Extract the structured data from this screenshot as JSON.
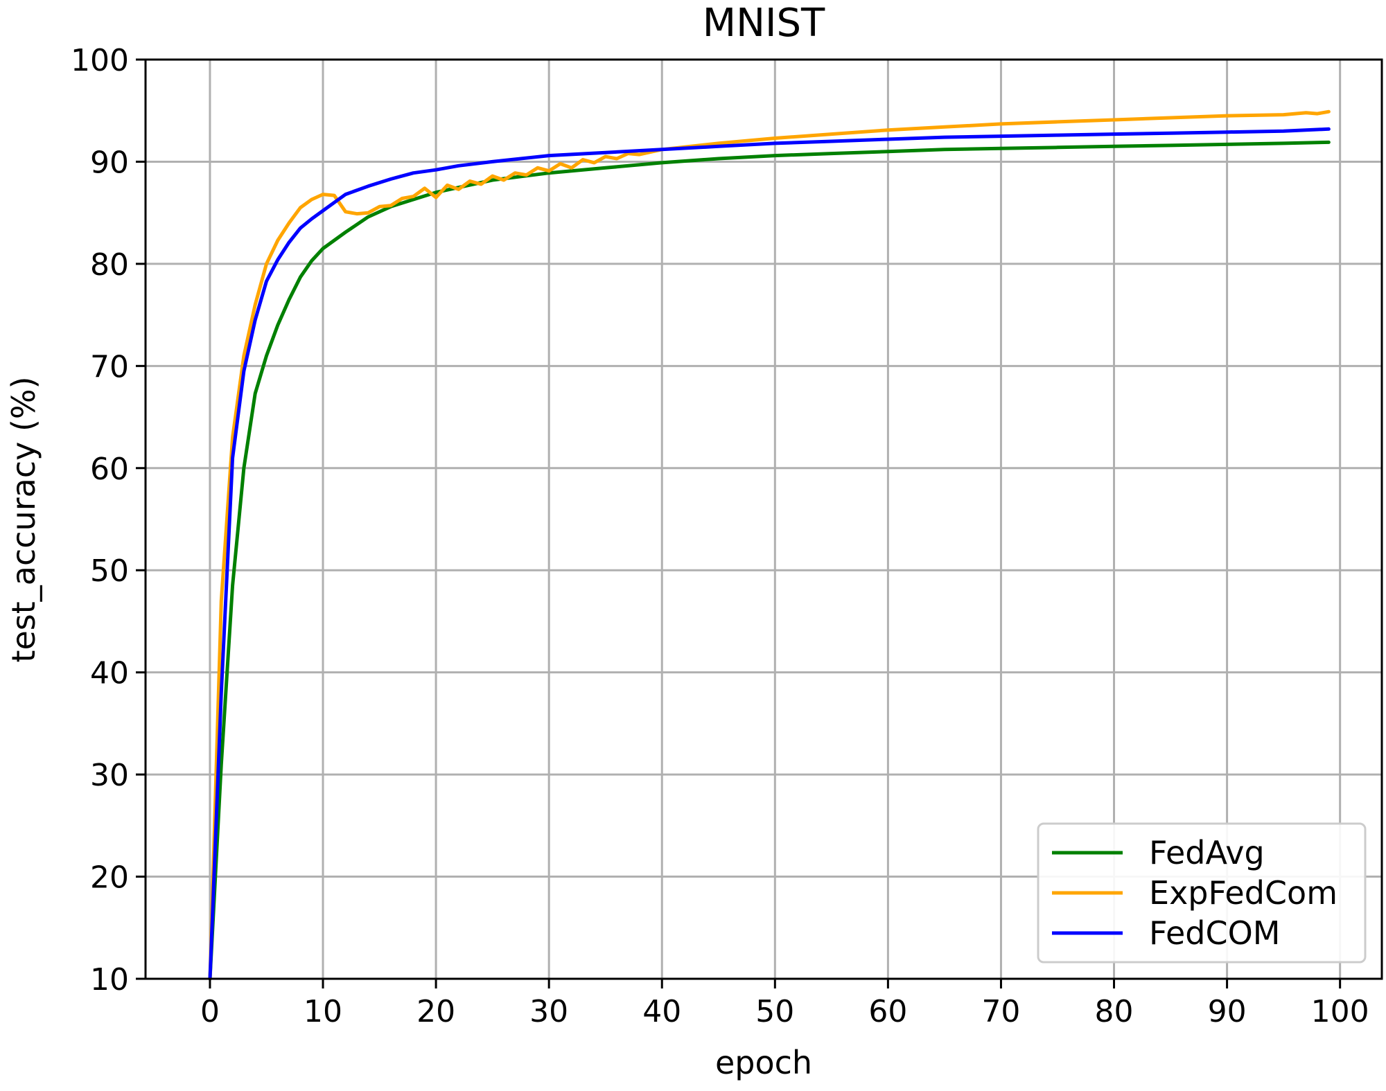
{
  "chart_data": {
    "type": "line",
    "title": "MNIST",
    "xlabel": "epoch",
    "ylabel": "test_accuracy (%)",
    "xlim": [
      -5.7,
      103.7
    ],
    "ylim": [
      10,
      100
    ],
    "xticks": [
      0,
      10,
      20,
      30,
      40,
      50,
      60,
      70,
      80,
      90,
      100
    ],
    "yticks": [
      10,
      20,
      30,
      40,
      50,
      60,
      70,
      80,
      90,
      100
    ],
    "grid": true,
    "legend_position": "lower-right",
    "series": [
      {
        "name": "FedAvg",
        "color": "#008000",
        "x": [
          0,
          1,
          2,
          3,
          4,
          5,
          6,
          7,
          8,
          9,
          10,
          12,
          14,
          16,
          18,
          20,
          25,
          30,
          35,
          40,
          45,
          50,
          55,
          60,
          65,
          70,
          75,
          80,
          85,
          90,
          95,
          99
        ],
        "y": [
          10,
          31,
          48.5,
          60,
          67.3,
          71,
          74,
          76.5,
          78.7,
          80.3,
          81.5,
          83.1,
          84.6,
          85.6,
          86.3,
          87,
          88.2,
          88.9,
          89.4,
          89.9,
          90.3,
          90.6,
          90.8,
          91,
          91.2,
          91.3,
          91.4,
          91.5,
          91.6,
          91.7,
          91.8,
          91.9
        ]
      },
      {
        "name": "ExpFedCom",
        "color": "#ffa500",
        "x": [
          0,
          1,
          2,
          3,
          4,
          5,
          6,
          7,
          8,
          9,
          10,
          11,
          12,
          13,
          14,
          15,
          16,
          17,
          18,
          19,
          20,
          21,
          22,
          23,
          24,
          25,
          26,
          27,
          28,
          29,
          30,
          31,
          32,
          33,
          34,
          35,
          36,
          37,
          38,
          40,
          45,
          50,
          55,
          60,
          65,
          70,
          75,
          80,
          85,
          90,
          95,
          97,
          98,
          99
        ],
        "y": [
          10,
          47,
          63,
          71,
          76,
          80,
          82.3,
          84,
          85.5,
          86.3,
          86.8,
          86.7,
          85.1,
          84.9,
          85,
          85.6,
          85.7,
          86.4,
          86.6,
          87.4,
          86.5,
          87.7,
          87.3,
          88.1,
          87.8,
          88.6,
          88.2,
          88.9,
          88.7,
          89.4,
          89.1,
          89.8,
          89.4,
          90.2,
          89.9,
          90.5,
          90.3,
          90.8,
          90.7,
          91.2,
          91.8,
          92.3,
          92.7,
          93.1,
          93.4,
          93.7,
          93.9,
          94.1,
          94.3,
          94.5,
          94.6,
          94.8,
          94.7,
          94.9
        ]
      },
      {
        "name": "FedCOM",
        "color": "#0000ff",
        "x": [
          0,
          1,
          2,
          3,
          4,
          5,
          6,
          7,
          8,
          9,
          10,
          11,
          12,
          14,
          16,
          18,
          20,
          22,
          25,
          30,
          35,
          40,
          45,
          50,
          55,
          60,
          65,
          70,
          75,
          80,
          85,
          90,
          95,
          99
        ],
        "y": [
          10,
          38,
          61,
          69.5,
          74.5,
          78.3,
          80.4,
          82.1,
          83.5,
          84.4,
          85.2,
          86,
          86.8,
          87.6,
          88.3,
          88.9,
          89.2,
          89.6,
          90,
          90.6,
          90.9,
          91.2,
          91.5,
          91.8,
          92,
          92.2,
          92.4,
          92.5,
          92.6,
          92.7,
          92.8,
          92.9,
          93,
          93.2
        ]
      }
    ]
  }
}
